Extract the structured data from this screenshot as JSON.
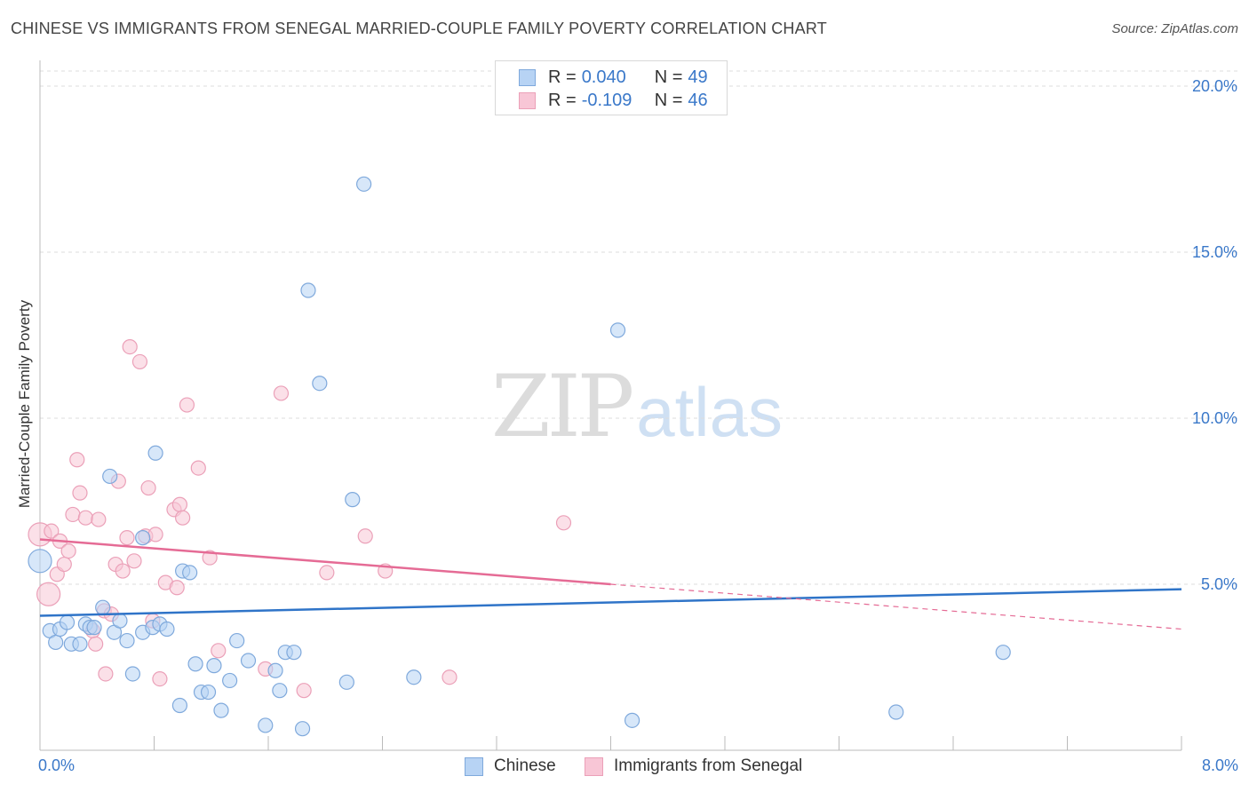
{
  "title": "CHINESE VS IMMIGRANTS FROM SENEGAL MARRIED-COUPLE FAMILY POVERTY CORRELATION CHART",
  "source": "Source: ZipAtlas.com",
  "watermark": {
    "zip": "ZIP",
    "atlas": "atlas"
  },
  "colors": {
    "chinese_fill": "#b7d3f4",
    "chinese_stroke": "#7fa9dc",
    "chinese_line": "#2f74c8",
    "senegal_fill": "#f8c6d6",
    "senegal_stroke": "#eba0b8",
    "senegal_line": "#e56b95",
    "axis_label": "#3a78c9",
    "grid": "#dddddd"
  },
  "legend": {
    "rows": [
      {
        "r_label": "R =",
        "r_value": "0.040",
        "n_label": "N =",
        "n_value": "49"
      },
      {
        "r_label": "R =",
        "r_value": "-0.109",
        "n_label": "N =",
        "n_value": "46"
      }
    ]
  },
  "bottom_legend": {
    "chinese": "Chinese",
    "senegal": "Immigrants from Senegal"
  },
  "chart_data": {
    "type": "scatter",
    "title": "CHINESE VS IMMIGRANTS FROM SENEGAL MARRIED-COUPLE FAMILY POVERTY CORRELATION CHART",
    "xlabel": "",
    "ylabel": "Married-Couple Family Poverty",
    "xlim": [
      0,
      8
    ],
    "ylim": [
      0,
      20
    ],
    "x_tick_labels": [
      "0.0%",
      "8.0%"
    ],
    "y_ticks": [
      5,
      10,
      15,
      20
    ],
    "y_tick_labels": [
      "5.0%",
      "10.0%",
      "15.0%",
      "20.0%"
    ],
    "grid": true,
    "legend_position": "top-center",
    "series": [
      {
        "name": "Chinese",
        "r": 0.04,
        "n": 49,
        "trend": {
          "x": [
            0,
            8
          ],
          "y": [
            4.05,
            4.85
          ]
        },
        "points": [
          {
            "x": 0.0,
            "y": 5.7,
            "big": true
          },
          {
            "x": 0.07,
            "y": 3.6
          },
          {
            "x": 0.11,
            "y": 3.25
          },
          {
            "x": 0.14,
            "y": 3.65
          },
          {
            "x": 0.19,
            "y": 3.85
          },
          {
            "x": 0.22,
            "y": 3.2
          },
          {
            "x": 0.28,
            "y": 3.2
          },
          {
            "x": 0.32,
            "y": 3.8
          },
          {
            "x": 0.35,
            "y": 3.7
          },
          {
            "x": 0.38,
            "y": 3.7
          },
          {
            "x": 0.44,
            "y": 4.3
          },
          {
            "x": 0.49,
            "y": 8.25
          },
          {
            "x": 0.52,
            "y": 3.55
          },
          {
            "x": 0.56,
            "y": 3.9
          },
          {
            "x": 0.61,
            "y": 3.3
          },
          {
            "x": 0.65,
            "y": 2.3
          },
          {
            "x": 0.72,
            "y": 3.55
          },
          {
            "x": 0.72,
            "y": 6.4
          },
          {
            "x": 0.79,
            "y": 3.7
          },
          {
            "x": 0.81,
            "y": 8.95
          },
          {
            "x": 0.84,
            "y": 3.8
          },
          {
            "x": 0.89,
            "y": 3.65
          },
          {
            "x": 0.98,
            "y": 1.35
          },
          {
            "x": 1.0,
            "y": 5.4
          },
          {
            "x": 1.05,
            "y": 5.35
          },
          {
            "x": 1.09,
            "y": 2.6
          },
          {
            "x": 1.13,
            "y": 1.75
          },
          {
            "x": 1.18,
            "y": 1.75
          },
          {
            "x": 1.22,
            "y": 2.55
          },
          {
            "x": 1.27,
            "y": 1.2
          },
          {
            "x": 1.33,
            "y": 2.1
          },
          {
            "x": 1.38,
            "y": 3.3
          },
          {
            "x": 1.46,
            "y": 2.7
          },
          {
            "x": 1.58,
            "y": 0.75
          },
          {
            "x": 1.65,
            "y": 2.4
          },
          {
            "x": 1.68,
            "y": 1.8
          },
          {
            "x": 1.72,
            "y": 2.95
          },
          {
            "x": 1.78,
            "y": 2.95
          },
          {
            "x": 1.84,
            "y": 0.65
          },
          {
            "x": 1.88,
            "y": 13.85
          },
          {
            "x": 1.96,
            "y": 11.05
          },
          {
            "x": 2.15,
            "y": 2.05
          },
          {
            "x": 2.19,
            "y": 7.55
          },
          {
            "x": 2.27,
            "y": 17.05
          },
          {
            "x": 2.62,
            "y": 2.2
          },
          {
            "x": 4.05,
            "y": 12.65
          },
          {
            "x": 4.15,
            "y": 0.9
          },
          {
            "x": 6.0,
            "y": 1.15
          },
          {
            "x": 6.75,
            "y": 2.95
          }
        ]
      },
      {
        "name": "Immigrants from Senegal",
        "r": -0.109,
        "n": 46,
        "trend": {
          "x": [
            0,
            4.0
          ],
          "y": [
            6.35,
            5.0
          ]
        },
        "trend_dashed": {
          "x": [
            4.0,
            8
          ],
          "y": [
            5.0,
            3.65
          ]
        },
        "points": [
          {
            "x": 0.0,
            "y": 6.5,
            "big": true
          },
          {
            "x": 0.06,
            "y": 4.7,
            "big": true
          },
          {
            "x": 0.08,
            "y": 6.6
          },
          {
            "x": 0.12,
            "y": 5.3
          },
          {
            "x": 0.14,
            "y": 6.3
          },
          {
            "x": 0.17,
            "y": 5.6
          },
          {
            "x": 0.2,
            "y": 6.0
          },
          {
            "x": 0.23,
            "y": 7.1
          },
          {
            "x": 0.26,
            "y": 8.75
          },
          {
            "x": 0.28,
            "y": 7.75
          },
          {
            "x": 0.32,
            "y": 7.0
          },
          {
            "x": 0.37,
            "y": 3.6
          },
          {
            "x": 0.39,
            "y": 3.2
          },
          {
            "x": 0.41,
            "y": 6.95
          },
          {
            "x": 0.45,
            "y": 4.2
          },
          {
            "x": 0.46,
            "y": 2.3
          },
          {
            "x": 0.5,
            "y": 4.1
          },
          {
            "x": 0.53,
            "y": 5.6
          },
          {
            "x": 0.55,
            "y": 8.1
          },
          {
            "x": 0.58,
            "y": 5.4
          },
          {
            "x": 0.61,
            "y": 6.4
          },
          {
            "x": 0.63,
            "y": 12.15
          },
          {
            "x": 0.66,
            "y": 5.7
          },
          {
            "x": 0.7,
            "y": 11.7
          },
          {
            "x": 0.74,
            "y": 6.45
          },
          {
            "x": 0.76,
            "y": 7.9
          },
          {
            "x": 0.79,
            "y": 3.9
          },
          {
            "x": 0.81,
            "y": 6.5
          },
          {
            "x": 0.84,
            "y": 2.15
          },
          {
            "x": 0.88,
            "y": 5.05
          },
          {
            "x": 0.94,
            "y": 7.25
          },
          {
            "x": 0.96,
            "y": 4.9
          },
          {
            "x": 0.98,
            "y": 7.4
          },
          {
            "x": 1.0,
            "y": 7.0
          },
          {
            "x": 1.03,
            "y": 10.4
          },
          {
            "x": 1.11,
            "y": 8.5
          },
          {
            "x": 1.19,
            "y": 5.8
          },
          {
            "x": 1.25,
            "y": 3.0
          },
          {
            "x": 1.58,
            "y": 2.45
          },
          {
            "x": 1.69,
            "y": 10.75
          },
          {
            "x": 1.85,
            "y": 1.8
          },
          {
            "x": 2.01,
            "y": 5.35
          },
          {
            "x": 2.28,
            "y": 6.45
          },
          {
            "x": 2.42,
            "y": 5.4
          },
          {
            "x": 2.87,
            "y": 2.2
          },
          {
            "x": 3.67,
            "y": 6.85
          }
        ]
      }
    ]
  }
}
